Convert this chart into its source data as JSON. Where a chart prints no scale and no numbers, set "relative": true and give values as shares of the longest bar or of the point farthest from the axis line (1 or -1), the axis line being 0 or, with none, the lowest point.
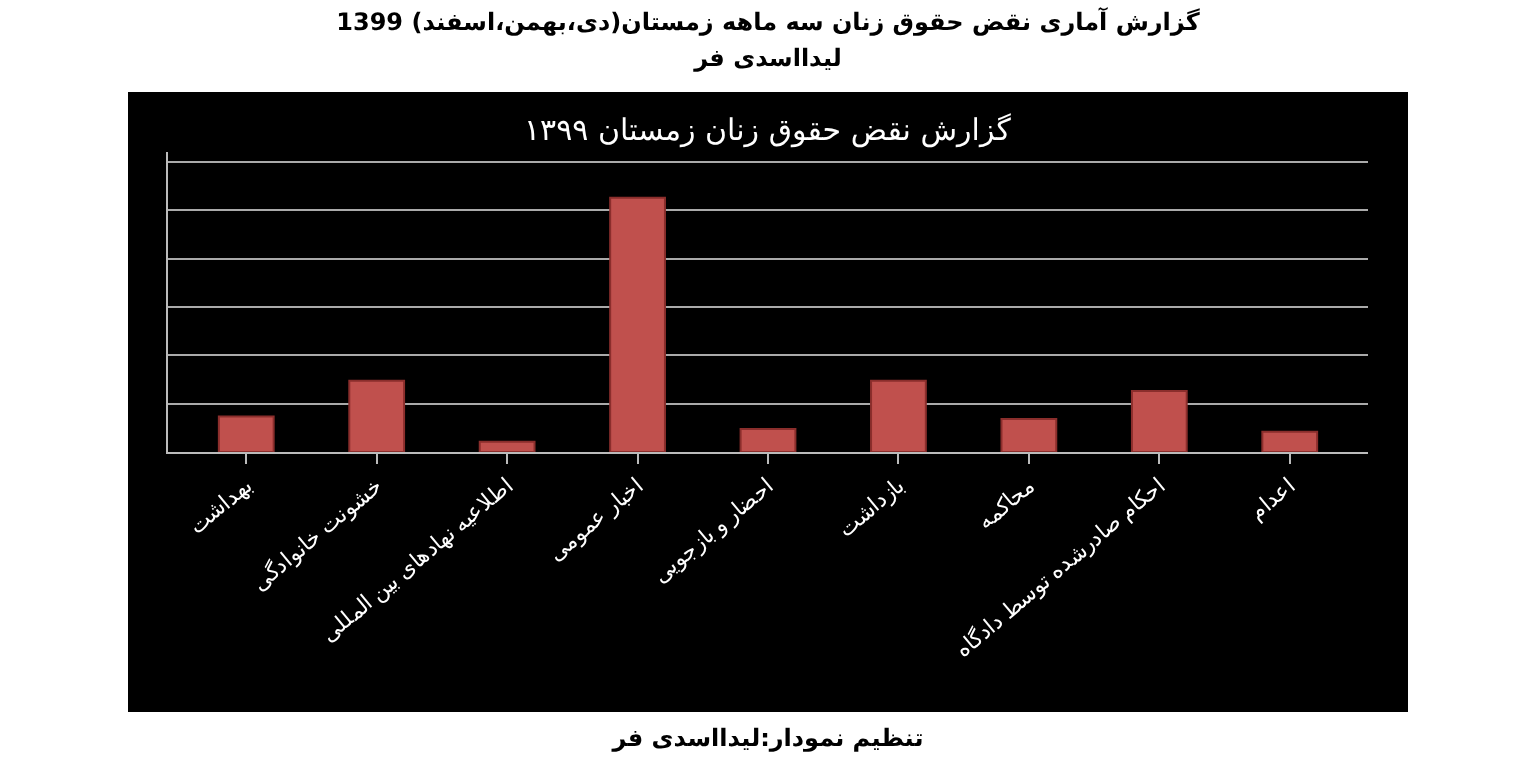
{
  "chart_data": {
    "type": "bar",
    "title": "گزارش آماری نقض حقوق زنان سه ماهه زمستان(دی،بهمن،اسفند) 1399",
    "subtitle": "لیدااسدی فر",
    "annotations": [
      "گزارش نقض حقوق زنان زمستان ۱۳۹۹",
      "تنظیم نمودار:لیدااسدی فر"
    ],
    "categories": [
      "بهداشت",
      "خشونت خانوادگی",
      "اطلاعیه نهادهای بین المللی",
      "اخبار عمومی",
      "احضار و بازجویی",
      "بازداشت",
      "محاکمه",
      "احکام صادرشده توسط دادگاه",
      "اعدام"
    ],
    "values": [
      0.14,
      0.28,
      0.04,
      1,
      0.09,
      0.28,
      0.13,
      0.24,
      0.08
    ],
    "color": "#c0504d",
    "relative": true,
    "grid": "y"
  }
}
